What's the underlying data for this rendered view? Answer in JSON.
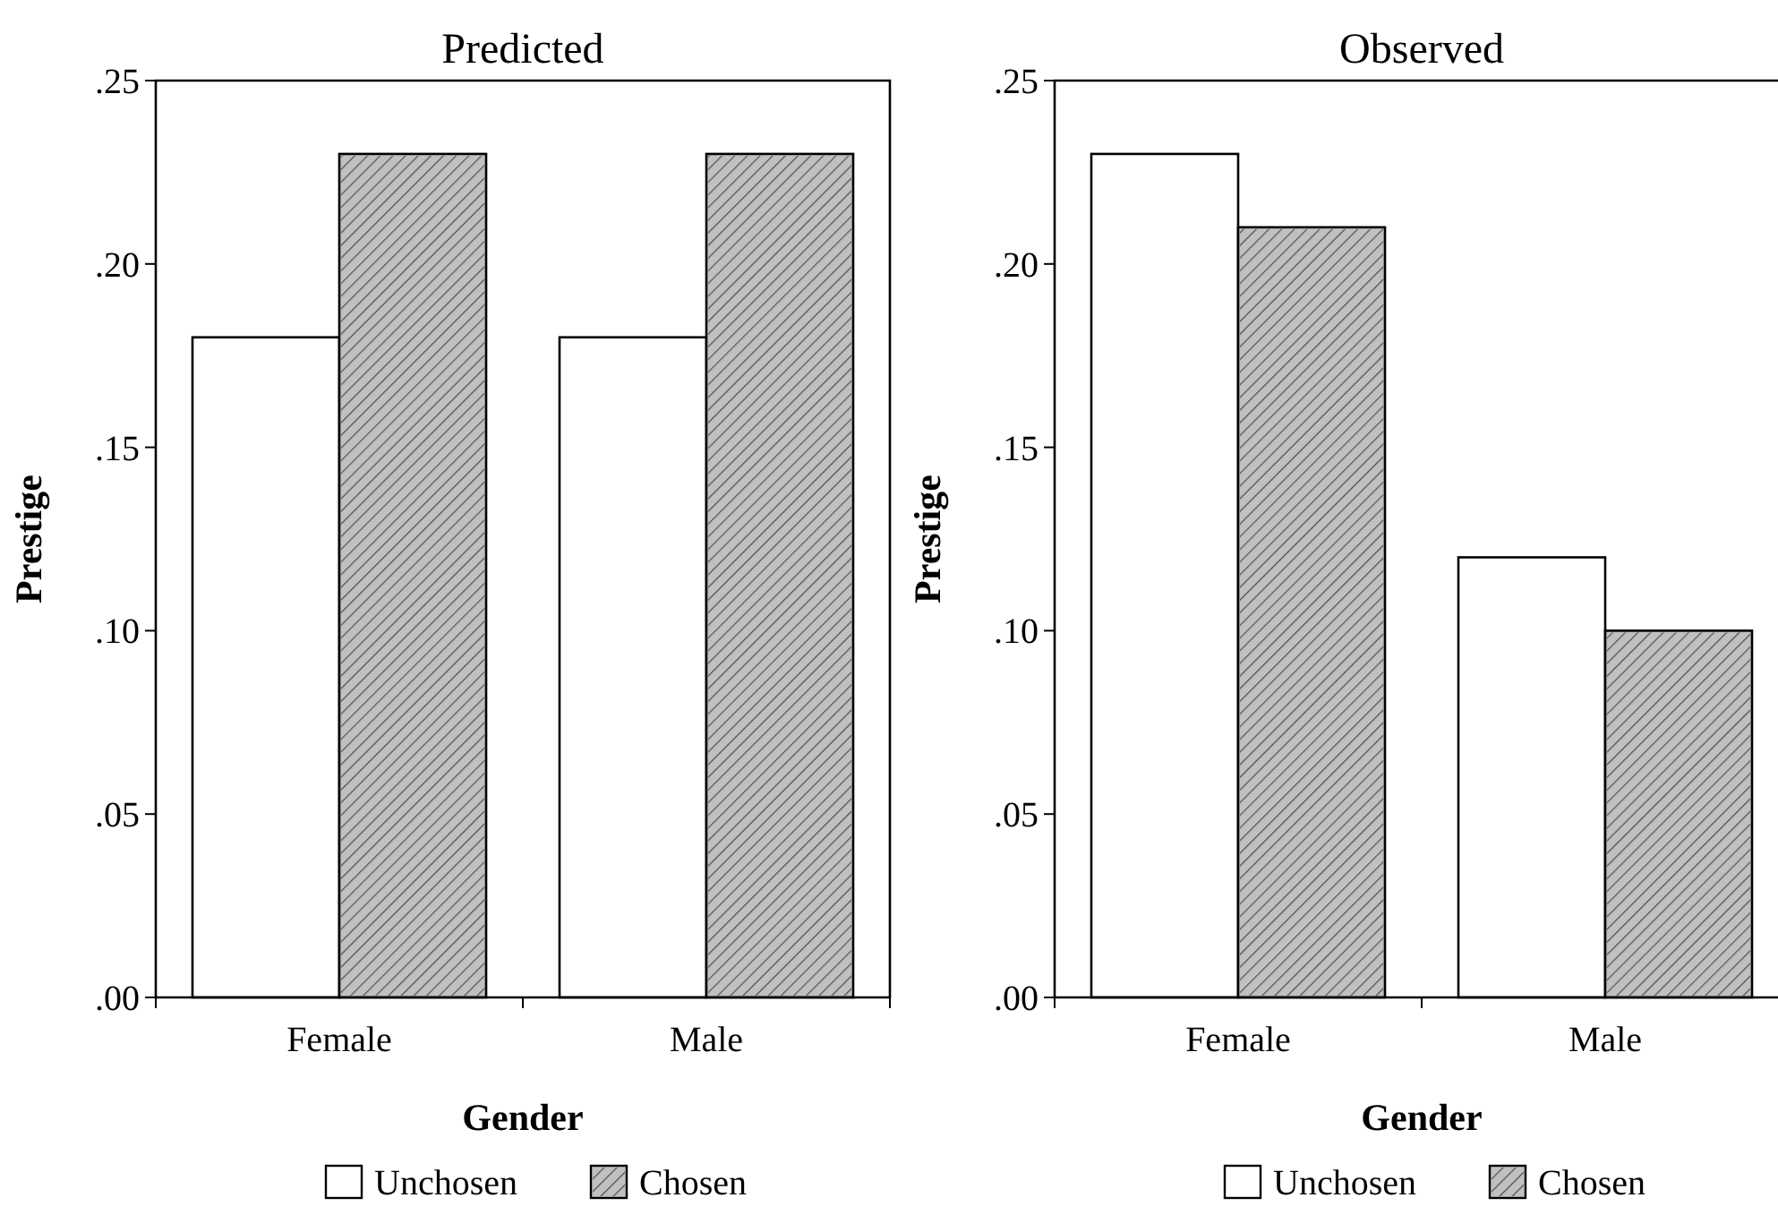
{
  "chart_data": [
    {
      "type": "bar",
      "title": "Predicted",
      "xlabel": "Gender",
      "ylabel": "Prestige",
      "categories": [
        "Female",
        "Male"
      ],
      "series": [
        {
          "name": "Unchosen",
          "color": "#ffffff",
          "values": [
            0.18,
            0.18
          ]
        },
        {
          "name": "Chosen",
          "color": "#c0c0c0",
          "values": [
            0.23,
            0.23
          ]
        }
      ],
      "ylim": [
        0,
        0.25
      ],
      "yticks": [
        {
          "value": 0,
          "label": ".00"
        },
        {
          "value": 0.05,
          "label": ".05"
        },
        {
          "value": 0.1,
          "label": ".10"
        },
        {
          "value": 0.15,
          "label": ".15"
        },
        {
          "value": 0.2,
          "label": ".20"
        },
        {
          "value": 0.25,
          "label": ".25"
        }
      ],
      "grid": false,
      "legend": "bottom"
    },
    {
      "type": "bar",
      "title": "Observed",
      "xlabel": "Gender",
      "ylabel": "Prestige",
      "categories": [
        "Female",
        "Male"
      ],
      "series": [
        {
          "name": "Unchosen",
          "color": "#ffffff",
          "values": [
            0.23,
            0.12
          ]
        },
        {
          "name": "Chosen",
          "color": "#c0c0c0",
          "values": [
            0.21,
            0.1
          ]
        }
      ],
      "ylim": [
        0,
        0.25
      ],
      "yticks": [
        {
          "value": 0,
          "label": ".00"
        },
        {
          "value": 0.05,
          "label": ".05"
        },
        {
          "value": 0.1,
          "label": ".10"
        },
        {
          "value": 0.15,
          "label": ".15"
        },
        {
          "value": 0.2,
          "label": ".20"
        },
        {
          "value": 0.25,
          "label": ".25"
        }
      ],
      "grid": false,
      "legend": "bottom"
    }
  ]
}
